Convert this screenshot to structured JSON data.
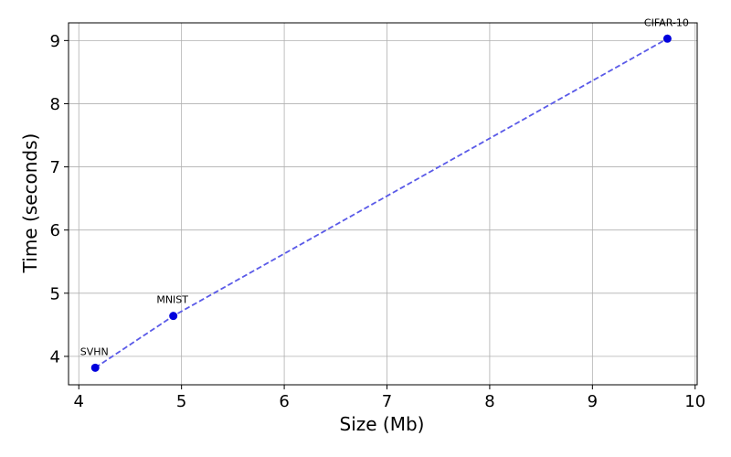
{
  "chart_data": {
    "type": "line",
    "title": "",
    "xlabel": "Size (Mb)",
    "ylabel": "Time (seconds)",
    "xlim": [
      3.9,
      10.02
    ],
    "ylim": [
      3.55,
      9.28
    ],
    "x_ticks": [
      4,
      5,
      6,
      7,
      8,
      9,
      10
    ],
    "y_ticks": [
      4,
      5,
      6,
      7,
      8,
      9
    ],
    "grid": true,
    "series": [
      {
        "color": "#0000dd",
        "line_color": "#5a5ae8",
        "line_style": "dashed",
        "marker": "circle",
        "points": [
          {
            "label": "SVHN",
            "x": 4.16,
            "y": 3.82
          },
          {
            "label": "MNIST",
            "x": 4.92,
            "y": 4.64
          },
          {
            "label": "CIFAR-10",
            "x": 9.73,
            "y": 9.03
          }
        ]
      }
    ]
  }
}
